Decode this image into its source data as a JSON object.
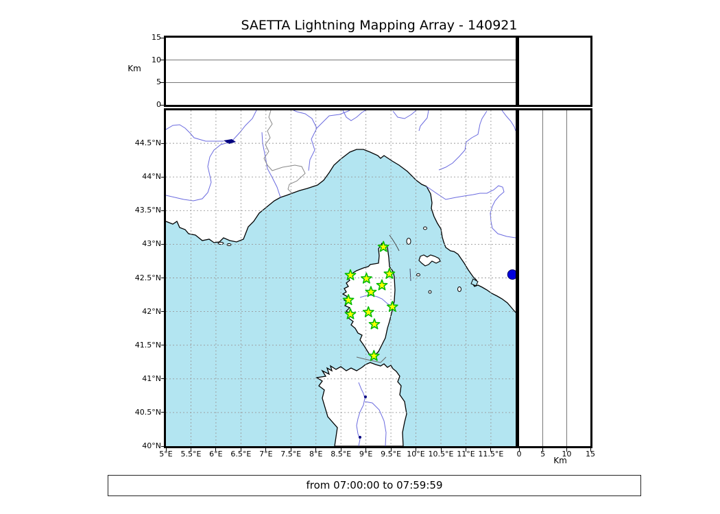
{
  "title": "SAETTA Lightning Mapping Array - 140921",
  "footer": {
    "text": "from 07:00:00 to 07:59:59"
  },
  "top_panel": {
    "axis_label": "Km",
    "range": [
      0,
      15
    ],
    "gridlines": [
      5,
      10
    ],
    "ticks": [
      {
        "label": "0",
        "value": 0
      },
      {
        "label": "5",
        "value": 5
      },
      {
        "label": "10",
        "value": 10
      },
      {
        "label": "15",
        "value": 15
      }
    ]
  },
  "right_panel": {
    "axis_label": "Km",
    "range": [
      0,
      15
    ],
    "gridlines": [
      5,
      10
    ],
    "ticks": [
      {
        "label": "0",
        "value": 0
      },
      {
        "label": "5",
        "value": 5
      },
      {
        "label": "10",
        "value": 10
      },
      {
        "label": "15",
        "value": 15
      }
    ]
  },
  "map": {
    "lon_ticks": [
      {
        "label": "5°E",
        "value": 5
      },
      {
        "label": "5.5°E",
        "value": 5.5
      },
      {
        "label": "6°E",
        "value": 6
      },
      {
        "label": "6.5°E",
        "value": 6.5
      },
      {
        "label": "7°E",
        "value": 7
      },
      {
        "label": "7.5°E",
        "value": 7.5
      },
      {
        "label": "8°E",
        "value": 8
      },
      {
        "label": "8.5°E",
        "value": 8.5
      },
      {
        "label": "9°E",
        "value": 9
      },
      {
        "label": "9.5°E",
        "value": 9.5
      },
      {
        "label": "10°E",
        "value": 10
      },
      {
        "label": "10.5°E",
        "value": 10.5
      },
      {
        "label": "11°E",
        "value": 11
      },
      {
        "label": "11.5°E",
        "value": 11.5
      }
    ],
    "lat_ticks": [
      {
        "label": "40°N",
        "value": 40
      },
      {
        "label": "40.5°N",
        "value": 40.5
      },
      {
        "label": "41°N",
        "value": 41
      },
      {
        "label": "41.5°N",
        "value": 41.5
      },
      {
        "label": "42°N",
        "value": 42
      },
      {
        "label": "42.5°N",
        "value": 42.5
      },
      {
        "label": "43°N",
        "value": 43
      },
      {
        "label": "43.5°N",
        "value": 43.5
      },
      {
        "label": "44°N",
        "value": 44
      },
      {
        "label": "44.5°N",
        "value": 44.5
      }
    ]
  },
  "colors": {
    "sea": "#B3E5F1",
    "land": "#FFFFFF",
    "coast": "#000000",
    "river": "#6A6ADF",
    "border_line": "#888888",
    "grid": "#999999",
    "station_fill": "#FFFF00",
    "station_edge": "#00BB00",
    "event": "#0000DD",
    "lake": "#000080"
  },
  "chart_data": {
    "type": "scatter",
    "title": "SAETTA Lightning Mapping Array - 140921",
    "time_window": {
      "from": "07:00:00",
      "to": "07:59:59"
    },
    "map_extent": {
      "lon_deg_E": [
        5.0,
        12.0
      ],
      "lat_deg_N": [
        40.0,
        45.0
      ]
    },
    "altitude_axis_km": {
      "range": [
        0,
        15
      ],
      "ticks": [
        0,
        5,
        10,
        15
      ]
    },
    "series": [
      {
        "name": "lma-stations",
        "marker": "star",
        "marker_fill": "#FFFF00",
        "marker_edge": "#00BB00",
        "points_lon_lat": [
          [
            9.35,
            42.96
          ],
          [
            8.69,
            42.54
          ],
          [
            9.01,
            42.49
          ],
          [
            9.47,
            42.56
          ],
          [
            9.32,
            42.39
          ],
          [
            9.1,
            42.29
          ],
          [
            8.65,
            42.17
          ],
          [
            9.53,
            42.07
          ],
          [
            8.69,
            41.96
          ],
          [
            9.05,
            41.99
          ],
          [
            9.17,
            41.81
          ],
          [
            9.16,
            41.34
          ]
        ]
      },
      {
        "name": "located-source",
        "marker": "circle",
        "marker_fill": "#0000DD",
        "points_lon_lat": [
          [
            11.93,
            42.55
          ]
        ]
      }
    ],
    "layout": {
      "panels": [
        "altitude-vs-longitude (top)",
        "map (center)",
        "altitude-vs-latitude (right)"
      ],
      "grid": "dashed 0.5° graticule on map; solid gridlines at 5 and 10 km on altitude panels"
    }
  }
}
